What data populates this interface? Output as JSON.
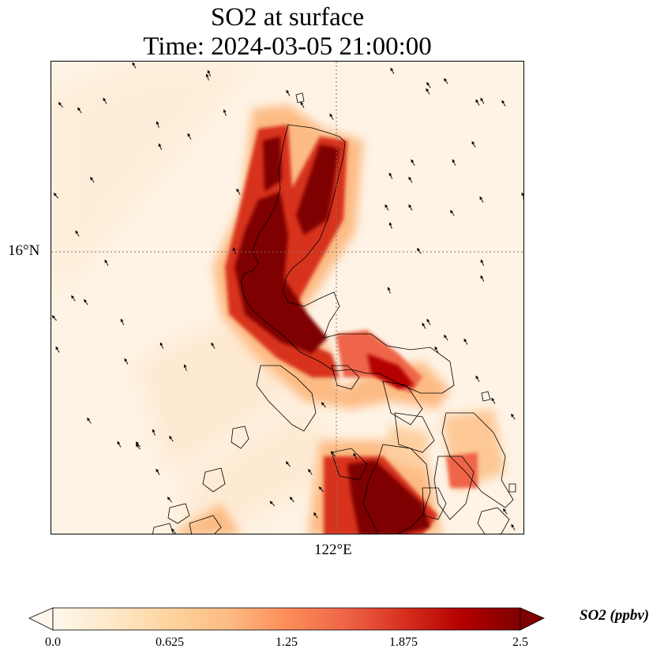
{
  "map": {
    "title_line1": "SO2 at surface",
    "title_line2": "Time: 2024-03-05 21:00:00",
    "lat_gridline_label": "16°N",
    "lon_gridline_label": "122°E",
    "variable": "SO2",
    "units": "ppbv"
  },
  "colorbar": {
    "label": "SO2 (ppbv)",
    "ticks": [
      "0.0",
      "0.625",
      "1.25",
      "1.875",
      "2.5"
    ],
    "min": 0.0,
    "max": 2.5,
    "extend": "both",
    "cmap": "OrRd",
    "colors": [
      "#fff7ec",
      "#fee8c8",
      "#fdd49e",
      "#fdbb84",
      "#fc8d59",
      "#ef6548",
      "#d7301f",
      "#b30000",
      "#7f0000"
    ]
  }
}
